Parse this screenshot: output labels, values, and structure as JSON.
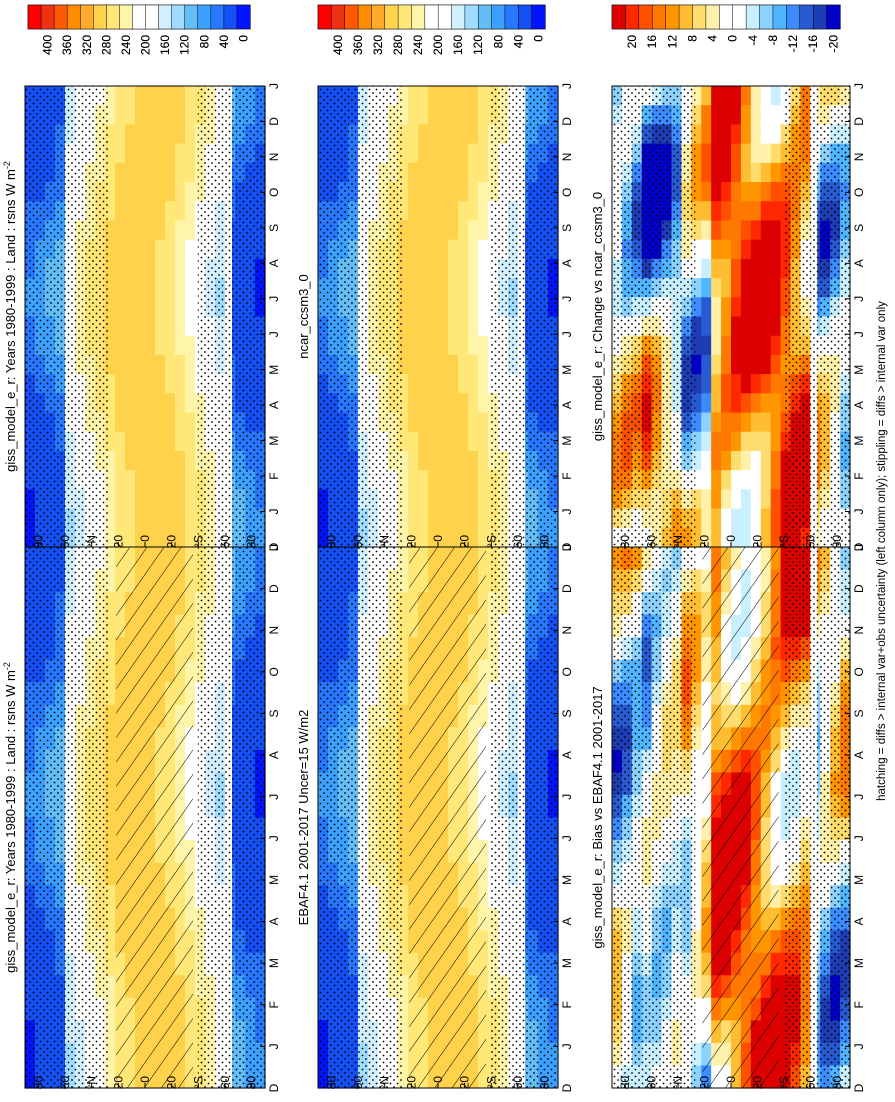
{
  "footnote": "hatching = diffs > internal var+obs uncertainty (left column only); stippling = diffs > internal var only",
  "colors": {
    "abs": [
      "#ff0000",
      "#f03214",
      "#ff5a00",
      "#ff8c00",
      "#ffaa28",
      "#ffd24b",
      "#ffe878",
      "#fff5aa",
      "#ffffff",
      "#ffffff",
      "#d2f0ff",
      "#a0dcff",
      "#64bef5",
      "#3ca0ff",
      "#2878ff",
      "#1450f5",
      "#0014ff"
    ],
    "diff": [
      "#dc0000",
      "#ff2800",
      "#ff5000",
      "#ff7800",
      "#ff9600",
      "#ffbe32",
      "#ffdc6e",
      "#fff0aa",
      "#ffffff",
      "#ffffff",
      "#c8f0ff",
      "#8cd2ff",
      "#50b4ff",
      "#3c8cff",
      "#285ad2",
      "#1e3cb4",
      "#0000c8"
    ],
    "line": "#000000"
  },
  "chart_data": [
    {
      "id": "giss-bias-panel",
      "type": "heatmap",
      "title": "giss_model_e_r: Years 1980-1999 : Land : rsns W m",
      "title_superscript": "-2",
      "x_ticks": [
        "D",
        "J",
        "F",
        "M",
        "A",
        "M",
        "J",
        "J",
        "A",
        "S",
        "O",
        "N",
        "D",
        "J"
      ],
      "y_ticks": [
        "80",
        "60",
        "°N",
        "20",
        "0",
        "20",
        "°S",
        "60",
        "80"
      ],
      "colorbar": {
        "labels": [
          "400",
          "360",
          "320",
          "280",
          "240",
          "200",
          "160",
          "120",
          "80",
          "40",
          "0"
        ],
        "palette": "abs",
        "ylim": [
          0,
          420
        ]
      },
      "overlays": [
        "stippling",
        "hatching"
      ]
    },
    {
      "id": "giss-change-panel",
      "type": "heatmap",
      "title": "giss_model_e_r: Years 1980-1999 : Land : rsns W m",
      "title_superscript": "-2",
      "x_ticks": [
        "D",
        "J",
        "F",
        "M",
        "A",
        "M",
        "J",
        "J",
        "A",
        "S",
        "O",
        "N",
        "D",
        "J"
      ],
      "y_ticks": [
        "80",
        "60",
        "°N",
        "20",
        "0",
        "20",
        "°S",
        "60",
        "80"
      ],
      "colorbar": {
        "labels": [
          "400",
          "360",
          "320",
          "280",
          "240",
          "200",
          "160",
          "120",
          "80",
          "40",
          "0"
        ],
        "palette": "abs",
        "ylim": [
          0,
          420
        ]
      },
      "overlays": [
        "stippling"
      ]
    },
    {
      "id": "ebaf-panel",
      "type": "heatmap",
      "title": "EBAF4.1 2001-2017 Uncer=15 W/m2",
      "title_superscript": "",
      "x_ticks": [
        "D",
        "J",
        "F",
        "M",
        "A",
        "M",
        "J",
        "J",
        "A",
        "S",
        "O",
        "N",
        "D",
        "J"
      ],
      "y_ticks": [
        "80",
        "60",
        "°N",
        "20",
        "0",
        "20",
        "°S",
        "60",
        "80"
      ],
      "colorbar": {
        "labels": [
          "400",
          "360",
          "320",
          "280",
          "240",
          "200",
          "160",
          "120",
          "80",
          "40",
          "0"
        ],
        "palette": "abs",
        "ylim": [
          0,
          420
        ]
      },
      "overlays": [
        "stippling",
        "hatching"
      ]
    },
    {
      "id": "ncar-panel",
      "type": "heatmap",
      "title": "ncar_ccsm3_0",
      "title_superscript": "",
      "x_ticks": [
        "D",
        "J",
        "F",
        "M",
        "A",
        "M",
        "J",
        "J",
        "A",
        "S",
        "O",
        "N",
        "D",
        "J"
      ],
      "y_ticks": [
        "80",
        "60",
        "°N",
        "20",
        "0",
        "20",
        "°S",
        "60",
        "80"
      ],
      "colorbar": {
        "labels": [
          "400",
          "360",
          "320",
          "280",
          "240",
          "200",
          "160",
          "120",
          "80",
          "40",
          "0"
        ],
        "palette": "abs",
        "ylim": [
          0,
          420
        ]
      },
      "overlays": [
        "stippling"
      ]
    },
    {
      "id": "bias-vs-ebaf-panel",
      "type": "heatmap",
      "title": "giss_model_e_r: Bias vs EBAF4.1 2001-2017",
      "title_superscript": "",
      "x_ticks": [
        "D",
        "J",
        "F",
        "M",
        "A",
        "M",
        "J",
        "J",
        "A",
        "S",
        "O",
        "N",
        "D",
        "J"
      ],
      "y_ticks": [
        "80",
        "60",
        "°N",
        "20",
        "0",
        "20",
        "°S",
        "60",
        "80"
      ],
      "colorbar": {
        "labels": [
          "20",
          "16",
          "12",
          "8",
          "4",
          "0",
          "-4",
          "-8",
          "-12",
          "-16",
          "-20"
        ],
        "palette": "diff",
        "ylim": [
          -22,
          22
        ]
      },
      "overlays": [
        "stippling",
        "hatching"
      ]
    },
    {
      "id": "change-vs-ncar-panel",
      "type": "heatmap",
      "title": "giss_model_e_r: Change vs ncar_ccsm3_0",
      "title_superscript": "",
      "x_ticks": [
        "D",
        "J",
        "F",
        "M",
        "A",
        "M",
        "J",
        "J",
        "A",
        "S",
        "O",
        "N",
        "D",
        "J"
      ],
      "y_ticks": [
        "80",
        "60",
        "°N",
        "20",
        "0",
        "20",
        "°S",
        "60",
        "80"
      ],
      "colorbar": {
        "labels": [
          "20",
          "16",
          "12",
          "8",
          "4",
          "0",
          "-4",
          "-8",
          "-12",
          "-16",
          "-20"
        ],
        "palette": "diff",
        "ylim": [
          -22,
          22
        ]
      },
      "overlays": [
        "stippling"
      ]
    }
  ]
}
